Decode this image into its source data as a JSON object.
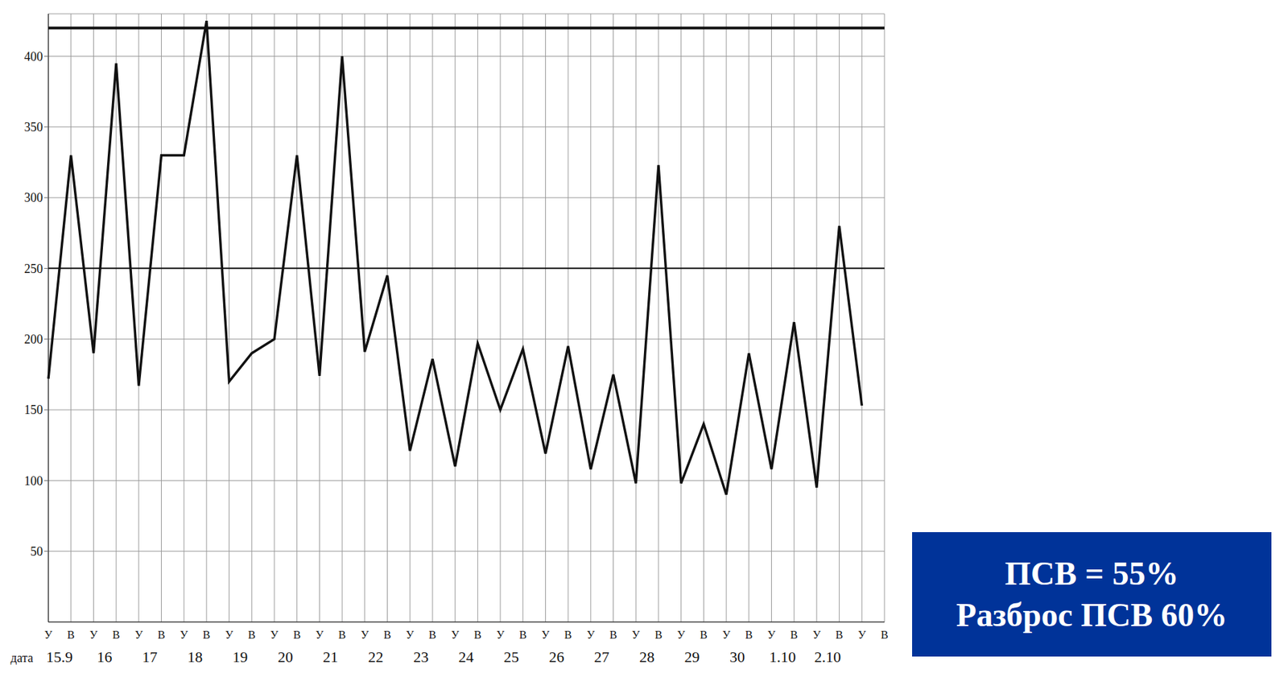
{
  "chart_data": {
    "type": "line",
    "x_label": "дата",
    "categories": [
      "У",
      "В",
      "У",
      "В",
      "У",
      "В",
      "У",
      "В",
      "У",
      "В",
      "У",
      "В",
      "У",
      "В",
      "У",
      "В",
      "У",
      "В",
      "У",
      "В",
      "У",
      "В",
      "У",
      "В",
      "У",
      "В",
      "У",
      "В",
      "У",
      "В",
      "У",
      "В",
      "У",
      "В",
      "У",
      "В",
      "У",
      "В"
    ],
    "dates": [
      "15.9",
      "16",
      "17",
      "18",
      "19",
      "20",
      "21",
      "22",
      "23",
      "24",
      "25",
      "26",
      "27",
      "28",
      "29",
      "30",
      "1.10",
      "2.10",
      null
    ],
    "values": [
      172,
      330,
      190,
      395,
      167,
      330,
      330,
      425,
      170,
      190,
      200,
      330,
      174,
      400,
      191,
      245,
      121,
      186,
      110,
      197,
      150,
      193,
      119,
      195,
      108,
      175,
      98,
      323,
      98,
      140,
      90,
      190,
      108,
      212,
      95,
      280,
      153,
      null
    ],
    "color": "#111111",
    "ylim": [
      0,
      430
    ],
    "yticks": [
      50,
      100,
      150,
      200,
      250,
      300,
      350,
      400
    ],
    "reference_lines": [
      420,
      250
    ],
    "grid": true,
    "annotations": [
      "ПСВ = 55%",
      "Разброс ПСВ 60%"
    ],
    "annotation_color": "#003399"
  }
}
